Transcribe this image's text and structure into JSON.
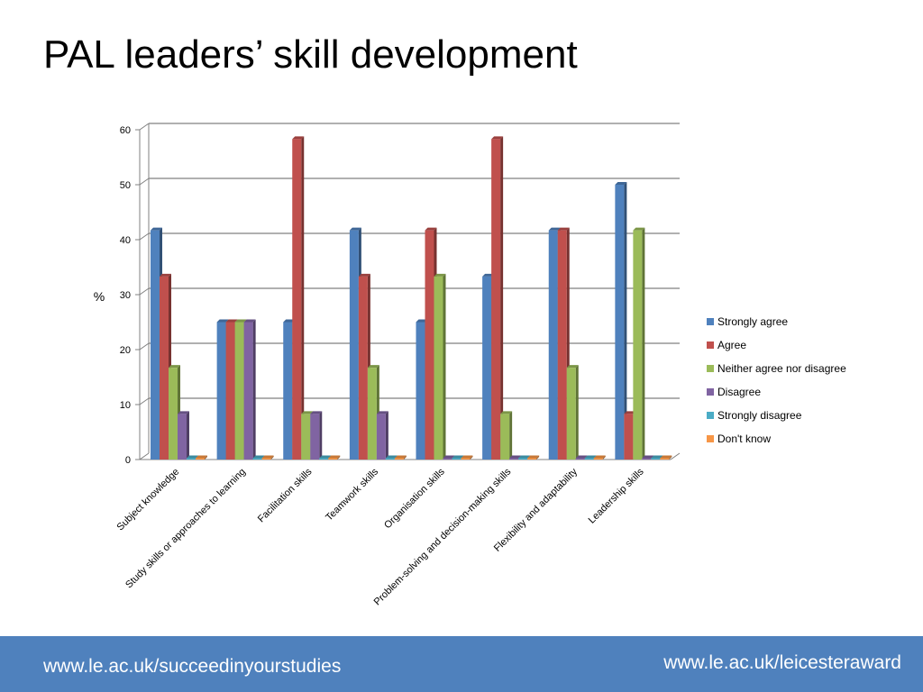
{
  "slide": {
    "title": "PAL leaders’ skill development",
    "footer_left": "www.le.ac.uk/succeedinyourstudies",
    "footer_right": "www.le.ac.uk/leicesteraward"
  },
  "chart_data": {
    "type": "bar",
    "ylabel": "%",
    "ylim": [
      0,
      60
    ],
    "yticks": [
      0,
      10,
      20,
      30,
      40,
      50,
      60
    ],
    "grid": true,
    "legend_position": "right",
    "categories": [
      "Subject knowledge",
      "Study skills or approaches to learning",
      "Facilitation skills",
      "Teamwork skills",
      "Organisation skills",
      "Problem-solving and decision-making skills",
      "Flexibility and adaptability",
      "Leadership skills"
    ],
    "series": [
      {
        "name": "Strongly agree",
        "color": "#4f81bd",
        "values": [
          41.7,
          25,
          25,
          41.7,
          25,
          33.3,
          41.7,
          50
        ]
      },
      {
        "name": "Agree",
        "color": "#c0504d",
        "values": [
          33.3,
          25,
          58.3,
          33.3,
          41.7,
          58.3,
          41.7,
          8.3
        ]
      },
      {
        "name": "Neither agree nor disagree",
        "color": "#9bbb59",
        "values": [
          16.7,
          25,
          8.3,
          16.7,
          33.3,
          8.3,
          16.7,
          41.7
        ]
      },
      {
        "name": "Disagree",
        "color": "#8064a2",
        "values": [
          8.3,
          25,
          8.3,
          8.3,
          0,
          0,
          0,
          0
        ]
      },
      {
        "name": "Strongly disagree",
        "color": "#4bacc6",
        "values": [
          0,
          0,
          0,
          0,
          0,
          0,
          0,
          0
        ]
      },
      {
        "name": "Don't know",
        "color": "#f79646",
        "values": [
          0,
          0,
          0,
          0,
          0,
          0,
          0,
          0
        ]
      }
    ]
  }
}
